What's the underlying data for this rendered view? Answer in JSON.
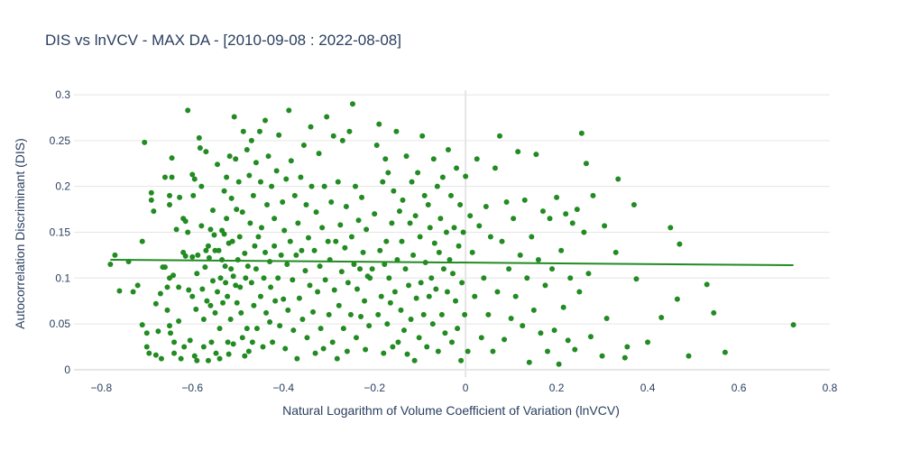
{
  "chart_data": {
    "type": "scatter",
    "title": "DIS vs lnVCV - MAX DA - [2010-09-08 : 2022-08-08]",
    "xlabel": "Natural Logarithm of Volume Coefficient of Variation (lnVCV)",
    "ylabel": "Autocorrelation Discriminant (DIS)",
    "xlim": [
      -0.86,
      0.8
    ],
    "ylim": [
      -0.008,
      0.305
    ],
    "x_ticks": [
      -0.8,
      -0.6,
      -0.4,
      -0.2,
      0,
      0.2,
      0.4,
      0.6,
      0.8
    ],
    "x_tick_labels": [
      "−0.8",
      "−0.6",
      "−0.4",
      "−0.2",
      "0",
      "0.2",
      "0.4",
      "0.6",
      "0.8"
    ],
    "y_ticks": [
      0,
      0.05,
      0.1,
      0.15,
      0.2,
      0.25,
      0.3
    ],
    "y_tick_labels": [
      "0",
      "0.05",
      "0.1",
      "0.15",
      "0.2",
      "0.25",
      "0.3"
    ],
    "grid": true,
    "legend": "none",
    "colors": {
      "points": "#228b22",
      "trend": "#228b22"
    },
    "trendline": {
      "x": [
        -0.78,
        0.72
      ],
      "y": [
        0.12,
        0.114
      ]
    },
    "points": [
      [
        -0.78,
        0.115
      ],
      [
        -0.77,
        0.125
      ],
      [
        -0.76,
        0.086
      ],
      [
        -0.74,
        0.118
      ],
      [
        -0.73,
        0.085
      ],
      [
        -0.72,
        0.092
      ],
      [
        -0.71,
        0.14
      ],
      [
        -0.71,
        0.049
      ],
      [
        -0.705,
        0.248
      ],
      [
        -0.7,
        0.025
      ],
      [
        -0.7,
        0.04
      ],
      [
        -0.695,
        0.018
      ],
      [
        -0.69,
        0.185
      ],
      [
        -0.69,
        0.193
      ],
      [
        -0.685,
        0.173
      ],
      [
        -0.68,
        0.072
      ],
      [
        -0.68,
        0.016
      ],
      [
        -0.675,
        0.042
      ],
      [
        -0.67,
        0.083
      ],
      [
        -0.668,
        0.012
      ],
      [
        -0.665,
        0.112
      ],
      [
        -0.66,
        0.21
      ],
      [
        -0.66,
        0.112
      ],
      [
        -0.655,
        0.09
      ],
      [
        -0.655,
        0.065
      ],
      [
        -0.65,
        0.19
      ],
      [
        -0.65,
        0.18
      ],
      [
        -0.65,
        0.1
      ],
      [
        -0.65,
        0.048
      ],
      [
        -0.648,
        0.04
      ],
      [
        -0.645,
        0.231
      ],
      [
        -0.645,
        0.21
      ],
      [
        -0.642,
        0.103
      ],
      [
        -0.64,
        0.03
      ],
      [
        -0.64,
        0.018
      ],
      [
        -0.635,
        0.153
      ],
      [
        -0.63,
        0.09
      ],
      [
        -0.63,
        0.053
      ],
      [
        -0.628,
        0.188
      ],
      [
        -0.625,
        0.012
      ],
      [
        -0.62,
        0.165
      ],
      [
        -0.62,
        0.128
      ],
      [
        -0.618,
        0.025
      ],
      [
        -0.615,
        0.162
      ],
      [
        -0.615,
        0.124
      ],
      [
        -0.61,
        0.283
      ],
      [
        -0.61,
        0.15
      ],
      [
        -0.608,
        0.087
      ],
      [
        -0.605,
        0.032
      ],
      [
        -0.6,
        0.213
      ],
      [
        -0.6,
        0.123
      ],
      [
        -0.6,
        0.08
      ],
      [
        -0.598,
        0.19
      ],
      [
        -0.595,
        0.208
      ],
      [
        -0.595,
        0.015
      ],
      [
        -0.592,
        0.066
      ],
      [
        -0.59,
        0.105
      ],
      [
        -0.59,
        0.01
      ],
      [
        -0.588,
        0.125
      ],
      [
        -0.585,
        0.253
      ],
      [
        -0.583,
        0.242
      ],
      [
        -0.58,
        0.2
      ],
      [
        -0.58,
        0.157
      ],
      [
        -0.578,
        0.088
      ],
      [
        -0.575,
        0.055
      ],
      [
        -0.575,
        0.025
      ],
      [
        -0.572,
        0.112
      ],
      [
        -0.57,
        0.238
      ],
      [
        -0.57,
        0.13
      ],
      [
        -0.568,
        0.075
      ],
      [
        -0.565,
        0.135
      ],
      [
        -0.565,
        0.01
      ],
      [
        -0.563,
        0.122
      ],
      [
        -0.56,
        0.153
      ],
      [
        -0.56,
        0.07
      ],
      [
        -0.558,
        0.03
      ],
      [
        -0.555,
        0.174
      ],
      [
        -0.555,
        0.097
      ],
      [
        -0.552,
        0.147
      ],
      [
        -0.55,
        0.13
      ],
      [
        -0.55,
        0.062
      ],
      [
        -0.548,
        0.018
      ],
      [
        -0.545,
        0.224
      ],
      [
        -0.545,
        0.085
      ],
      [
        -0.542,
        0.13
      ],
      [
        -0.54,
        0.045
      ],
      [
        -0.54,
        0.012
      ],
      [
        -0.538,
        0.1
      ],
      [
        -0.535,
        0.152
      ],
      [
        -0.535,
        0.12
      ],
      [
        -0.533,
        0.073
      ],
      [
        -0.53,
        0.195
      ],
      [
        -0.53,
        0.148
      ],
      [
        -0.528,
        0.113
      ],
      [
        -0.527,
        0.095
      ],
      [
        -0.525,
        0.21
      ],
      [
        -0.525,
        0.165
      ],
      [
        -0.523,
        0.08
      ],
      [
        -0.522,
        0.03
      ],
      [
        -0.52,
        0.138
      ],
      [
        -0.52,
        0.017
      ],
      [
        -0.518,
        0.233
      ],
      [
        -0.516,
        0.055
      ],
      [
        -0.515,
        0.11
      ],
      [
        -0.514,
        0.187
      ],
      [
        -0.512,
        0.14
      ],
      [
        -0.51,
        0.102
      ],
      [
        -0.51,
        0.028
      ],
      [
        -0.508,
        0.276
      ],
      [
        -0.505,
        0.23
      ],
      [
        -0.505,
        0.092
      ],
      [
        -0.503,
        0.175
      ],
      [
        -0.502,
        0.073
      ],
      [
        -0.5,
        0.12
      ],
      [
        -0.498,
        0.205
      ],
      [
        -0.496,
        0.145
      ],
      [
        -0.495,
        0.09
      ],
      [
        -0.493,
        0.062
      ],
      [
        -0.49,
        0.172
      ],
      [
        -0.49,
        0.035
      ],
      [
        -0.488,
        0.26
      ],
      [
        -0.485,
        0.127
      ],
      [
        -0.485,
        0.015
      ],
      [
        -0.483,
        0.1
      ],
      [
        -0.48,
        0.24
      ],
      [
        -0.48,
        0.045
      ],
      [
        -0.478,
        0.113
      ],
      [
        -0.476,
        0.02
      ],
      [
        -0.475,
        0.212
      ],
      [
        -0.473,
        0.16
      ],
      [
        -0.47,
        0.25
      ],
      [
        -0.47,
        0.095
      ],
      [
        -0.468,
        0.03
      ],
      [
        -0.466,
        0.19
      ],
      [
        -0.465,
        0.07
      ],
      [
        -0.463,
        0.135
      ],
      [
        -0.46,
        0.226
      ],
      [
        -0.46,
        0.11
      ],
      [
        -0.458,
        0.045
      ],
      [
        -0.455,
        0.145
      ],
      [
        -0.452,
        0.26
      ],
      [
        -0.45,
        0.205
      ],
      [
        -0.45,
        0.08
      ],
      [
        -0.448,
        0.155
      ],
      [
        -0.445,
        0.025
      ],
      [
        -0.443,
        0.1
      ],
      [
        -0.44,
        0.272
      ],
      [
        -0.44,
        0.128
      ],
      [
        -0.438,
        0.062
      ],
      [
        -0.436,
        0.18
      ],
      [
        -0.433,
        0.233
      ],
      [
        -0.43,
        0.118
      ],
      [
        -0.43,
        0.052
      ],
      [
        -0.428,
        0.09
      ],
      [
        -0.426,
        0.2
      ],
      [
        -0.424,
        0.03
      ],
      [
        -0.42,
        0.165
      ],
      [
        -0.42,
        0.135
      ],
      [
        -0.418,
        0.075
      ],
      [
        -0.415,
        0.217
      ],
      [
        -0.412,
        0.1
      ],
      [
        -0.41,
        0.256
      ],
      [
        -0.408,
        0.048
      ],
      [
        -0.405,
        0.125
      ],
      [
        -0.402,
        0.183
      ],
      [
        -0.4,
        0.077
      ],
      [
        -0.398,
        0.152
      ],
      [
        -0.396,
        0.023
      ],
      [
        -0.394,
        0.208
      ],
      [
        -0.392,
        0.115
      ],
      [
        -0.39,
        0.065
      ],
      [
        -0.388,
        0.283
      ],
      [
        -0.385,
        0.14
      ],
      [
        -0.383,
        0.228
      ],
      [
        -0.38,
        0.098
      ],
      [
        -0.378,
        0.043
      ],
      [
        -0.375,
        0.19
      ],
      [
        -0.372,
        0.125
      ],
      [
        -0.37,
        0.012
      ],
      [
        -0.368,
        0.16
      ],
      [
        -0.365,
        0.078
      ],
      [
        -0.362,
        0.21
      ],
      [
        -0.36,
        0.13
      ],
      [
        -0.358,
        0.055
      ],
      [
        -0.355,
        0.245
      ],
      [
        -0.352,
        0.108
      ],
      [
        -0.35,
        0.18
      ],
      [
        -0.348,
        0.035
      ],
      [
        -0.345,
        0.144
      ],
      [
        -0.342,
        0.092
      ],
      [
        -0.34,
        0.265
      ],
      [
        -0.338,
        0.2
      ],
      [
        -0.335,
        0.063
      ],
      [
        -0.332,
        0.13
      ],
      [
        -0.33,
        0.018
      ],
      [
        -0.328,
        0.172
      ],
      [
        -0.325,
        0.085
      ],
      [
        -0.322,
        0.236
      ],
      [
        -0.32,
        0.113
      ],
      [
        -0.318,
        0.045
      ],
      [
        -0.315,
        0.155
      ],
      [
        -0.312,
        0.023
      ],
      [
        -0.31,
        0.2
      ],
      [
        -0.308,
        0.098
      ],
      [
        -0.305,
        0.276
      ],
      [
        -0.302,
        0.14
      ],
      [
        -0.3,
        0.06
      ],
      [
        -0.298,
        0.12
      ],
      [
        -0.295,
        0.183
      ],
      [
        -0.292,
        0.03
      ],
      [
        -0.29,
        0.255
      ],
      [
        -0.288,
        0.087
      ],
      [
        -0.285,
        0.14
      ],
      [
        -0.282,
        0.012
      ],
      [
        -0.28,
        0.205
      ],
      [
        -0.278,
        0.07
      ],
      [
        -0.275,
        0.158
      ],
      [
        -0.272,
        0.107
      ],
      [
        -0.27,
        0.25
      ],
      [
        -0.268,
        0.045
      ],
      [
        -0.265,
        0.133
      ],
      [
        -0.262,
        0.178
      ],
      [
        -0.26,
        0.02
      ],
      [
        -0.258,
        0.095
      ],
      [
        -0.255,
        0.26
      ],
      [
        -0.252,
        0.06
      ],
      [
        -0.25,
        0.145
      ],
      [
        -0.248,
        0.29
      ],
      [
        -0.245,
        0.115
      ],
      [
        -0.242,
        0.2
      ],
      [
        -0.24,
        0.035
      ],
      [
        -0.238,
        0.088
      ],
      [
        -0.235,
        0.163
      ],
      [
        -0.232,
        0.11
      ],
      [
        -0.23,
        0.058
      ],
      [
        -0.228,
        0.188
      ],
      [
        -0.225,
        0.128
      ],
      [
        -0.222,
        0.075
      ],
      [
        -0.22,
        0.022
      ],
      [
        -0.218,
        0.153
      ],
      [
        -0.215,
        0.102
      ],
      [
        -0.212,
        0.048
      ],
      [
        -0.21,
        0.1
      ],
      [
        -0.205,
        0.11
      ],
      [
        -0.2,
        0.17
      ],
      [
        -0.195,
        0.245
      ],
      [
        -0.192,
        0.06
      ],
      [
        -0.19,
        0.268
      ],
      [
        -0.188,
        0.13
      ],
      [
        -0.185,
        0.08
      ],
      [
        -0.182,
        0.205
      ],
      [
        -0.18,
        0.018
      ],
      [
        -0.178,
        0.115
      ],
      [
        -0.176,
        0.23
      ],
      [
        -0.174,
        0.14
      ],
      [
        -0.172,
        0.05
      ],
      [
        -0.17,
        0.215
      ],
      [
        -0.168,
        0.1
      ],
      [
        -0.165,
        0.073
      ],
      [
        -0.162,
        0.16
      ],
      [
        -0.16,
        0.025
      ],
      [
        -0.158,
        0.195
      ],
      [
        -0.155,
        0.085
      ],
      [
        -0.152,
        0.26
      ],
      [
        -0.15,
        0.12
      ],
      [
        -0.148,
        0.03
      ],
      [
        -0.145,
        0.173
      ],
      [
        -0.142,
        0.065
      ],
      [
        -0.14,
        0.14
      ],
      [
        -0.138,
        0.185
      ],
      [
        -0.135,
        0.043
      ],
      [
        -0.132,
        0.11
      ],
      [
        -0.13,
        0.233
      ],
      [
        -0.128,
        0.017
      ],
      [
        -0.125,
        0.092
      ],
      [
        -0.122,
        0.16
      ],
      [
        -0.12,
        0.055
      ],
      [
        -0.118,
        0.205
      ],
      [
        -0.115,
        0.125
      ],
      [
        -0.112,
        0.01
      ],
      [
        -0.11,
        0.168
      ],
      [
        -0.108,
        0.078
      ],
      [
        -0.105,
        0.215
      ],
      [
        -0.102,
        0.035
      ],
      [
        -0.1,
        0.145
      ],
      [
        -0.098,
        0.095
      ],
      [
        -0.095,
        0.255
      ],
      [
        -0.092,
        0.06
      ],
      [
        -0.09,
        0.19
      ],
      [
        -0.088,
        0.117
      ],
      [
        -0.085,
        0.025
      ],
      [
        -0.082,
        0.18
      ],
      [
        -0.08,
        0.08
      ],
      [
        -0.078,
        0.155
      ],
      [
        -0.075,
        0.1
      ],
      [
        -0.072,
        0.05
      ],
      [
        -0.07,
        0.23
      ],
      [
        -0.068,
        0.138
      ],
      [
        -0.065,
        0.088
      ],
      [
        -0.062,
        0.2
      ],
      [
        -0.06,
        0.02
      ],
      [
        -0.058,
        0.128
      ],
      [
        -0.055,
        0.165
      ],
      [
        -0.052,
        0.06
      ],
      [
        -0.05,
        0.21
      ],
      [
        -0.048,
        0.11
      ],
      [
        -0.045,
        0.04
      ],
      [
        -0.042,
        0.15
      ],
      [
        -0.04,
        0.085
      ],
      [
        -0.038,
        0.24
      ],
      [
        -0.035,
        0.12
      ],
      [
        -0.032,
        0.19
      ],
      [
        -0.03,
        0.03
      ],
      [
        -0.028,
        0.105
      ],
      [
        -0.025,
        0.155
      ],
      [
        -0.022,
        0.075
      ],
      [
        -0.02,
        0.22
      ],
      [
        -0.018,
        0.045
      ],
      [
        -0.015,
        0.135
      ],
      [
        -0.012,
        0.18
      ],
      [
        -0.01,
        0.01
      ],
      [
        -0.008,
        0.095
      ],
      [
        -0.005,
        0.15
      ],
      [
        -0.002,
        0.06
      ],
      [
        0.0,
        0.211
      ],
      [
        0.005,
        0.02
      ],
      [
        0.01,
        0.168
      ],
      [
        0.015,
        0.128
      ],
      [
        0.02,
        0.08
      ],
      [
        0.025,
        0.23
      ],
      [
        0.03,
        0.157
      ],
      [
        0.035,
        0.035
      ],
      [
        0.04,
        0.1
      ],
      [
        0.045,
        0.178
      ],
      [
        0.05,
        0.06
      ],
      [
        0.055,
        0.145
      ],
      [
        0.06,
        0.02
      ],
      [
        0.065,
        0.22
      ],
      [
        0.07,
        0.085
      ],
      [
        0.075,
        0.255
      ],
      [
        0.08,
        0.14
      ],
      [
        0.085,
        0.033
      ],
      [
        0.09,
        0.183
      ],
      [
        0.095,
        0.11
      ],
      [
        0.1,
        0.056
      ],
      [
        0.105,
        0.165
      ],
      [
        0.11,
        0.08
      ],
      [
        0.115,
        0.238
      ],
      [
        0.12,
        0.125
      ],
      [
        0.125,
        0.048
      ],
      [
        0.13,
        0.185
      ],
      [
        0.135,
        0.1
      ],
      [
        0.14,
        0.008
      ],
      [
        0.145,
        0.145
      ],
      [
        0.15,
        0.065
      ],
      [
        0.155,
        0.235
      ],
      [
        0.16,
        0.12
      ],
      [
        0.165,
        0.04
      ],
      [
        0.17,
        0.173
      ],
      [
        0.175,
        0.092
      ],
      [
        0.18,
        0.02
      ],
      [
        0.185,
        0.165
      ],
      [
        0.19,
        0.11
      ],
      [
        0.195,
        0.043
      ],
      [
        0.2,
        0.188
      ],
      [
        0.205,
        0.006
      ],
      [
        0.21,
        0.13
      ],
      [
        0.215,
        0.068
      ],
      [
        0.22,
        0.17
      ],
      [
        0.225,
        0.032
      ],
      [
        0.23,
        0.1
      ],
      [
        0.235,
        0.16
      ],
      [
        0.24,
        0.022
      ],
      [
        0.245,
        0.175
      ],
      [
        0.25,
        0.085
      ],
      [
        0.255,
        0.258
      ],
      [
        0.26,
        0.15
      ],
      [
        0.265,
        0.225
      ],
      [
        0.27,
        0.105
      ],
      [
        0.275,
        0.036
      ],
      [
        0.28,
        0.19
      ],
      [
        0.3,
        0.015
      ],
      [
        0.305,
        0.157
      ],
      [
        0.31,
        0.056
      ],
      [
        0.33,
        0.128
      ],
      [
        0.335,
        0.208
      ],
      [
        0.35,
        0.013
      ],
      [
        0.355,
        0.025
      ],
      [
        0.37,
        0.18
      ],
      [
        0.375,
        0.099
      ],
      [
        0.4,
        0.03
      ],
      [
        0.43,
        0.057
      ],
      [
        0.45,
        0.155
      ],
      [
        0.465,
        0.077
      ],
      [
        0.47,
        0.137
      ],
      [
        0.49,
        0.015
      ],
      [
        0.53,
        0.093
      ],
      [
        0.545,
        0.062
      ],
      [
        0.57,
        0.019
      ],
      [
        0.72,
        0.049
      ]
    ]
  }
}
